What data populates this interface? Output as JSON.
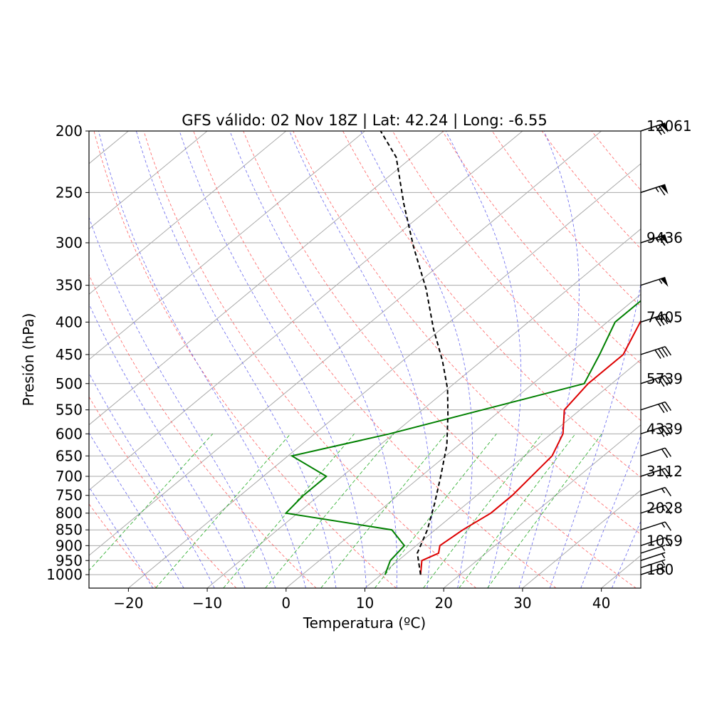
{
  "chart_data": {
    "type": "line",
    "title": "GFS válido: 02 Nov 18Z | Lat: 42.24 | Long: -6.55",
    "xlabel": "Temperatura (ºC)",
    "ylabel": "Presión (hPa)",
    "xlim": [
      -25,
      45
    ],
    "ylim": [
      1050,
      200
    ],
    "x_ticks": [
      -20,
      -10,
      0,
      10,
      20,
      30,
      40
    ],
    "x_tick_labels": [
      "−20",
      "−10",
      "0",
      "10",
      "20",
      "30",
      "40"
    ],
    "y_scale": "log",
    "y_ticks": [
      200,
      250,
      300,
      350,
      400,
      450,
      500,
      550,
      600,
      650,
      700,
      750,
      800,
      850,
      900,
      950,
      1000
    ],
    "y_tick_labels": [
      "200",
      "250",
      "300",
      "350",
      "400",
      "450",
      "500",
      "550",
      "600",
      "650",
      "700",
      "750",
      "800",
      "850",
      "900",
      "950",
      "1000"
    ],
    "grid": true,
    "skew": true,
    "series": [
      {
        "color": "#dd0000",
        "style": "solid",
        "points": [
          [
            15,
            1000
          ],
          [
            13,
            950
          ],
          [
            14,
            925
          ],
          [
            13,
            900
          ],
          [
            13.5,
            850
          ],
          [
            14.5,
            800
          ],
          [
            14.5,
            750
          ],
          [
            13.5,
            650
          ],
          [
            11.5,
            600
          ],
          [
            8,
            550
          ],
          [
            7,
            500
          ],
          [
            7,
            450
          ],
          [
            1,
            350
          ],
          [
            -10.5,
            250
          ],
          [
            -15.5,
            200
          ]
        ]
      },
      {
        "color": "#008000",
        "style": "solid",
        "points": [
          [
            10.5,
            1000
          ],
          [
            9,
            950
          ],
          [
            8.5,
            900
          ],
          [
            4.5,
            850
          ],
          [
            -11.5,
            800
          ],
          [
            -12,
            750
          ],
          [
            -12,
            700
          ],
          [
            -19.5,
            650
          ],
          [
            -10.5,
            600
          ],
          [
            6.5,
            500
          ],
          [
            4,
            450
          ],
          [
            1,
            400
          ],
          [
            1,
            350
          ],
          [
            -10.5,
            250
          ],
          [
            -15.5,
            200
          ]
        ]
      },
      {
        "color": "#000000",
        "style": "dashed",
        "points": [
          [
            15,
            1000
          ],
          [
            11.3,
            925
          ],
          [
            9,
            850
          ],
          [
            6,
            775
          ],
          [
            2.5,
            700
          ],
          [
            -1.5,
            625
          ],
          [
            -6,
            560
          ],
          [
            -10,
            510
          ],
          [
            -15,
            460
          ],
          [
            -21,
            410
          ],
          [
            -28,
            355
          ],
          [
            -36,
            305
          ],
          [
            -44,
            260
          ],
          [
            -52,
            220
          ],
          [
            -58,
            200
          ]
        ]
      }
    ],
    "wind_barbs": [
      {
        "pressure": 1000,
        "speed_kt": 5
      },
      {
        "pressure": 975,
        "speed_kt": 5
      },
      {
        "pressure": 950,
        "speed_kt": 5
      },
      {
        "pressure": 925,
        "speed_kt": 5
      },
      {
        "pressure": 900,
        "speed_kt": 10
      },
      {
        "pressure": 850,
        "speed_kt": 15
      },
      {
        "pressure": 800,
        "speed_kt": 15
      },
      {
        "pressure": 750,
        "speed_kt": 15
      },
      {
        "pressure": 700,
        "speed_kt": 20
      },
      {
        "pressure": 650,
        "speed_kt": 20
      },
      {
        "pressure": 600,
        "speed_kt": 30
      },
      {
        "pressure": 550,
        "speed_kt": 30
      },
      {
        "pressure": 500,
        "speed_kt": 35
      },
      {
        "pressure": 450,
        "speed_kt": 40
      },
      {
        "pressure": 400,
        "speed_kt": 40
      },
      {
        "pressure": 350,
        "speed_kt": 55
      },
      {
        "pressure": 300,
        "speed_kt": 65
      },
      {
        "pressure": 250,
        "speed_kt": 65
      },
      {
        "pressure": 200,
        "speed_kt": 70
      }
    ],
    "height_labels": [
      {
        "pressure": 1000,
        "height": "180"
      },
      {
        "pressure": 900,
        "height": "1059"
      },
      {
        "pressure": 800,
        "height": "2028"
      },
      {
        "pressure": 700,
        "height": "3112"
      },
      {
        "pressure": 600,
        "height": "4339"
      },
      {
        "pressure": 500,
        "height": "5739"
      },
      {
        "pressure": 400,
        "height": "7405"
      },
      {
        "pressure": 300,
        "height": "9436"
      },
      {
        "pressure": 200,
        "height": "12061"
      }
    ],
    "background_lines": {
      "isotherm_color": "#aaaaaa",
      "dry_adiabat_color": "#ff6060",
      "moist_adiabat_color": "#6666ee",
      "mixing_ratio_color": "#22aa22"
    }
  }
}
